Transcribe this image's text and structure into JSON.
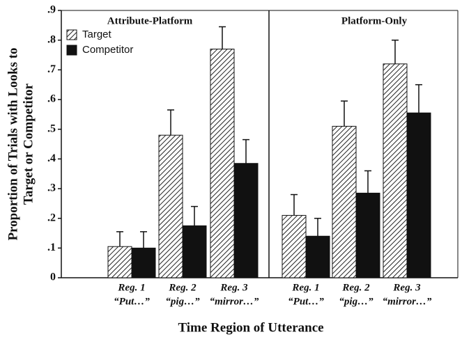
{
  "chart_data": {
    "type": "bar",
    "ylabel": [
      "Proportion of Trials with Looks to",
      "Target or Competitor"
    ],
    "xlabel": "Time Region of Utterance",
    "ylim": [
      0,
      0.9
    ],
    "yticks": [
      0,
      {
        "value": 0.1,
        "label": ".1"
      },
      {
        "value": 0.2,
        "label": ".2"
      },
      {
        "value": 0.3,
        "label": ".3"
      },
      {
        "value": 0.4,
        "label": ".4"
      },
      {
        "value": 0.5,
        "label": ".5"
      },
      {
        "value": 0.6,
        "label": ".6"
      },
      {
        "value": 0.7,
        "label": ".7"
      },
      {
        "value": 0.8,
        "label": ".8"
      },
      {
        "value": 0.9,
        "label": ".9"
      }
    ],
    "series": [
      {
        "name": "Target",
        "pattern": "hatch",
        "color": "#222222"
      },
      {
        "name": "Competitor",
        "color": "#111111"
      }
    ],
    "panels": [
      {
        "title": "Attribute-Platform",
        "categories": [
          "Reg. 1",
          "Reg. 2",
          "Reg. 3"
        ],
        "category_words": [
          "“Put…”",
          "“pig…”",
          "“mirror…”"
        ],
        "values": [
          [
            0.105,
            0.48,
            0.77
          ],
          [
            0.1,
            0.175,
            0.385
          ]
        ],
        "errors": [
          [
            0.05,
            0.085,
            0.075
          ],
          [
            0.055,
            0.065,
            0.08
          ]
        ]
      },
      {
        "title": "Platform-Only",
        "categories": [
          "Reg. 1",
          "Reg. 2",
          "Reg. 3"
        ],
        "category_words": [
          "“Put…”",
          "“pig…”",
          "“mirror…”"
        ],
        "values": [
          [
            0.21,
            0.51,
            0.72
          ],
          [
            0.14,
            0.285,
            0.555
          ]
        ],
        "errors": [
          [
            0.07,
            0.085,
            0.08
          ],
          [
            0.06,
            0.075,
            0.095
          ]
        ]
      }
    ]
  }
}
